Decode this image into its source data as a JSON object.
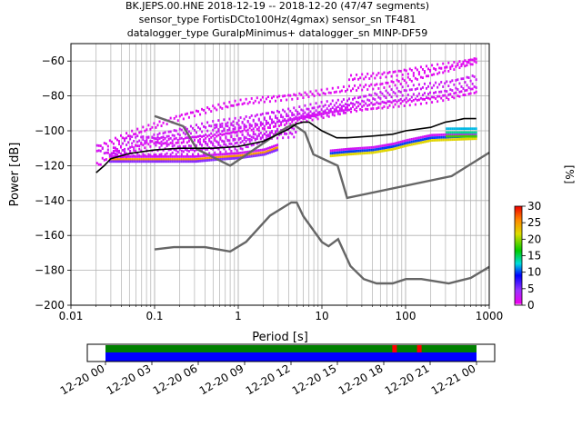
{
  "title_lines": [
    "BK.JEPS.00.HNE   2018-12-19 -- 2018-12-20  (47/47 segments)",
    "sensor_type FortisDCto100Hz(4gmax) sensor_sn TF481",
    "datalogger_type GuralpMinimus+ datalogger_sn MINP-DF59"
  ],
  "chart_data": [
    {
      "type": "heatmap",
      "xlabel": "Period [s]",
      "ylabel": "Power [dB]",
      "xscale": "log",
      "xlim": [
        0.01,
        1000
      ],
      "ylim": [
        -200,
        -50
      ],
      "xticks": [
        0.01,
        0.1,
        1,
        10,
        100,
        1000
      ],
      "xtick_labels": [
        "0.01",
        "0.1",
        "1",
        "10",
        "100",
        "1000"
      ],
      "yticks": [
        -200,
        -180,
        -160,
        -140,
        -120,
        -100,
        -80,
        -60
      ],
      "ytick_labels": [
        "−200",
        "−180",
        "−160",
        "−140",
        "−120",
        "−100",
        "−80",
        "−60"
      ],
      "grid": true,
      "mode_curve": {
        "name": "mode",
        "color": "#000000",
        "x": [
          0.02,
          0.025,
          0.03,
          0.05,
          0.1,
          0.2,
          0.5,
          1,
          2,
          3,
          4,
          5,
          6,
          7,
          8,
          10,
          15,
          20,
          40,
          70,
          100,
          200,
          300,
          400,
          500,
          700
        ],
        "y": [
          -124,
          -120,
          -116,
          -113,
          -111,
          -110,
          -110,
          -109,
          -106,
          -102,
          -99,
          -96,
          -95,
          -95,
          -97,
          -100,
          -104,
          -104,
          -103,
          -102,
          -100,
          -98,
          -95,
          -94,
          -93,
          -93
        ]
      },
      "noise_models": [
        {
          "name": "NHNM",
          "color": "#666666",
          "x": [
            0.1,
            0.22,
            0.32,
            0.8,
            3.8,
            4.6,
            6.3,
            7.9,
            15.4,
            20,
            354.8,
            1000
          ],
          "y": [
            -91.5,
            -97.4,
            -110.5,
            -120,
            -98,
            -96.5,
            -101,
            -113.5,
            -120,
            -138.5,
            -126,
            -112.5
          ]
        },
        {
          "name": "NLNM",
          "color": "#666666",
          "x": [
            0.1,
            0.17,
            0.4,
            0.8,
            1.24,
            2.4,
            4.3,
            5,
            6,
            10,
            12,
            15.6,
            21.9,
            31.6,
            45,
            70,
            101,
            154,
            328,
            600,
            1000
          ],
          "y": [
            -168,
            -166.7,
            -166.7,
            -169.2,
            -163.7,
            -148.6,
            -141.1,
            -141.1,
            -149,
            -163.8,
            -166.2,
            -162.1,
            -177.5,
            -185,
            -187.5,
            -187.5,
            -185,
            -185,
            -187.5,
            -184.4,
            -178
          ]
        }
      ],
      "colorbar": {
        "label": "[%]",
        "min": 0,
        "max": 30,
        "ticks": [
          0,
          5,
          10,
          15,
          20,
          25,
          30
        ],
        "colormap": "pqlx"
      },
      "histogram_summary": {
        "bottom_band": {
          "x": [
            0.028,
            0.05,
            0.1,
            0.2,
            0.3,
            0.5,
            1,
            2,
            3
          ],
          "y": [
            -116,
            -116,
            -116,
            -116,
            -116,
            -115,
            -114,
            -112,
            -109
          ],
          "level_pct": 25
        },
        "mid_band": {
          "x": [
            12,
            20,
            40,
            70,
            100,
            200,
            700
          ],
          "y": [
            -113,
            -112,
            -111,
            -109,
            -107,
            -104,
            -103
          ],
          "level_pct": 10
        },
        "right_band": {
          "x": [
            300,
            400,
            500,
            700
          ],
          "y": [
            -101,
            -101,
            -101,
            -101
          ],
          "level_pct": 14
        },
        "scatter_traces": [
          {
            "x": [
              0.02,
              0.05,
              0.1,
              0.2,
              0.5,
              1,
              2,
              5,
              10,
              20,
              50,
              100,
              300,
              700
            ],
            "y": [
              -110,
              -102,
              -97,
              -92,
              -87,
              -84,
              -82,
              -80,
              -78,
              -76,
              -74,
              -71,
              -65,
              -59
            ]
          },
          {
            "x": [
              0.03,
              0.06,
              0.1,
              0.2,
              0.5,
              1,
              2,
              5,
              10,
              20,
              50,
              100,
              300,
              700
            ],
            "y": [
              -112,
              -108,
              -103,
              -100,
              -96,
              -94,
              -91,
              -88,
              -85,
              -83,
              -79,
              -76,
              -73,
              -69
            ]
          },
          {
            "x": [
              0.04,
              0.06,
              0.1,
              0.2,
              0.5,
              1,
              2,
              5,
              10,
              20,
              50,
              100,
              300,
              700
            ],
            "y": [
              -106,
              -104,
              -105,
              -104,
              -101,
              -99,
              -96,
              -92,
              -89,
              -86,
              -83,
              -81,
              -78,
              -74
            ]
          },
          {
            "x": [
              0.05,
              0.1,
              0.2,
              0.5,
              1,
              2,
              5,
              10,
              20,
              50,
              100,
              300,
              700
            ],
            "y": [
              -110,
              -107,
              -106,
              -104,
              -101,
              -98,
              -94,
              -91,
              -88,
              -86,
              -84,
              -81,
              -77
            ]
          },
          {
            "x": [
              0.03,
              0.05,
              0.1,
              0.2,
              0.3,
              0.5,
              1,
              2,
              3
            ],
            "y": [
              -114,
              -113,
              -113,
              -112,
              -112,
              -111,
              -110,
              -105,
              -100
            ]
          },
          {
            "x": [
              0.1,
              0.2,
              0.5,
              1,
              2,
              5
            ],
            "y": [
              -108,
              -110,
              -108,
              -106,
              -102,
              -99
            ]
          },
          {
            "x": [
              0.02,
              0.025,
              0.03,
              0.04
            ],
            "y": [
              -120,
              -116,
              -112,
              -108
            ]
          },
          {
            "x": [
              0.02,
              0.025,
              0.03,
              0.04,
              0.05
            ],
            "y": [
              -110,
              -112,
              -113,
              -114,
              -114
            ]
          },
          {
            "x": [
              0.5,
              1,
              2,
              5,
              10,
              20
            ],
            "y": [
              -99,
              -97,
              -95,
              -92,
              -90,
              -88
            ]
          },
          {
            "x": [
              20,
              50,
              100,
              200,
              400,
              700
            ],
            "y": [
              -70,
              -68,
              -66,
              -64,
              -62,
              -60
            ]
          },
          {
            "x": [
              0.3,
              0.5,
              1,
              2,
              5
            ],
            "y": [
              -107,
              -106,
              -104,
              -103,
              -102
            ]
          }
        ]
      }
    },
    {
      "type": "timeline",
      "x_tick_labels": [
        "12-20 00",
        "12-20 03",
        "12-20 06",
        "12-20 09",
        "12-20 12",
        "12-20 15",
        "12-20 18",
        "12-20 21",
        "12-21 00"
      ],
      "x_start_hour": 0,
      "x_end_hour": 24,
      "data_start_hour": 0,
      "data_end_hour": 24,
      "bands": [
        {
          "name": "data",
          "color": "#0000ff"
        },
        {
          "name": "used",
          "color": "#008000"
        }
      ],
      "markers": [
        {
          "hour": 18.7,
          "color": "#ff0000"
        },
        {
          "hour": 20.3,
          "color": "#ff0000"
        }
      ]
    }
  ]
}
